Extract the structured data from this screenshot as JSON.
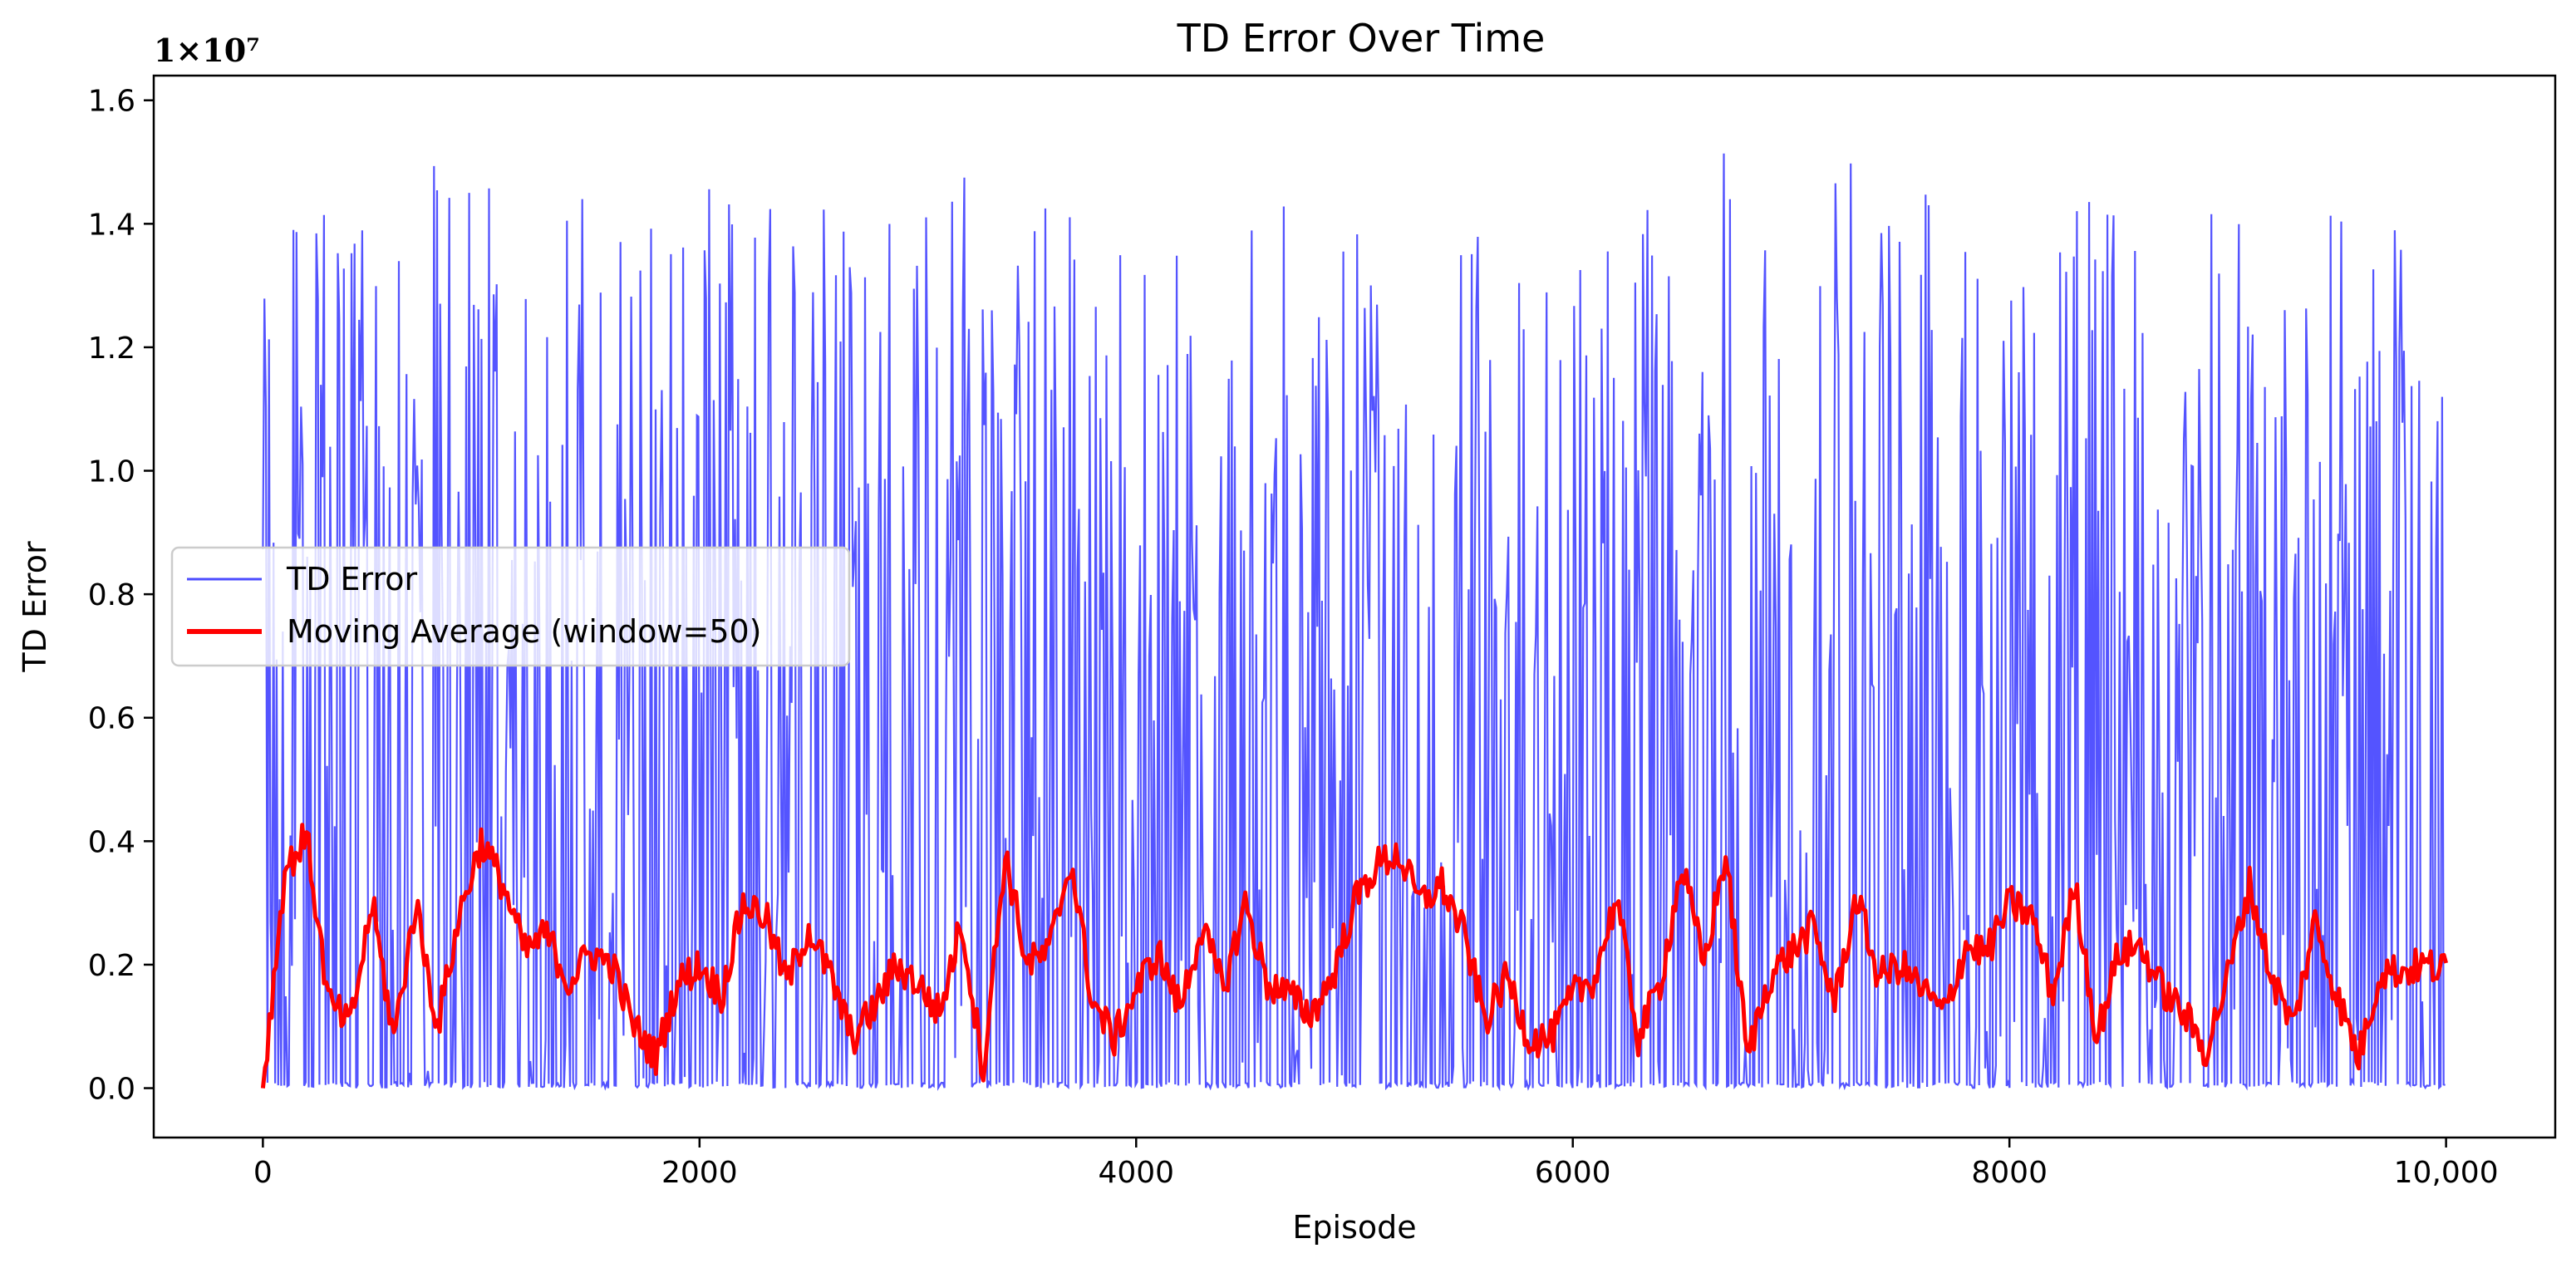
{
  "chart_data": {
    "type": "line",
    "title": "TD Error Over Time",
    "xlabel": "Episode",
    "ylabel": "TD Error",
    "y_offset_label": "1×10⁷",
    "y_scale_factor": 10000000,
    "xlim": [
      -500,
      10500
    ],
    "ylim": [
      -0.08,
      1.64
    ],
    "x_ticks": [
      0,
      2000,
      4000,
      6000,
      8000,
      10000
    ],
    "x_tick_labels": [
      "0",
      "2000",
      "4000",
      "6000",
      "8000",
      "10,000"
    ],
    "y_ticks": [
      0.0,
      0.2,
      0.4,
      0.6,
      0.8,
      1.0,
      1.2,
      1.4,
      1.6
    ],
    "y_tick_labels": [
      "0.0",
      "0.2",
      "0.4",
      "0.6",
      "0.8",
      "1.0",
      "1.2",
      "1.4",
      "1.6"
    ],
    "grid": false,
    "legend_position": "center-left",
    "series": [
      {
        "name": "TD Error",
        "color": "#4b4bff",
        "x": [
          0,
          100,
          200,
          300,
          400,
          500,
          600,
          700,
          800,
          900,
          1000,
          1100,
          1200,
          1300,
          1400,
          1500,
          1600,
          1700,
          1800,
          1900,
          2000,
          2100,
          2200,
          2300,
          2400,
          2500,
          2600,
          2700,
          2800,
          2900,
          3000,
          3100,
          3200,
          3300,
          3400,
          3500,
          3600,
          3700,
          3800,
          3900,
          4000,
          4100,
          4200,
          4300,
          4400,
          4500,
          4600,
          4700,
          4800,
          4900,
          5000,
          5100,
          5200,
          5300,
          5400,
          5500,
          5600,
          5700,
          5800,
          5900,
          6000,
          6100,
          6200,
          6300,
          6400,
          6500,
          6600,
          6700,
          6800,
          6900,
          7000,
          7100,
          7200,
          7300,
          7400,
          7500,
          7600,
          7700,
          7800,
          7900,
          8000,
          8100,
          8200,
          8300,
          8400,
          8500,
          8600,
          8700,
          8800,
          8900,
          9000,
          9100,
          9200,
          9300,
          9400,
          9500,
          9600,
          9700,
          9800,
          9900,
          10000
        ],
        "upper_envelope": [
          1.27,
          1.43,
          1.54,
          1.42,
          1.47,
          1.42,
          1.36,
          1.34,
          1.53,
          1.51,
          1.52,
          1.48,
          1.29,
          1.26,
          1.46,
          1.56,
          1.39,
          1.46,
          1.47,
          1.45,
          1.48,
          1.44,
          1.5,
          1.46,
          1.4,
          1.52,
          1.44,
          1.53,
          1.46,
          1.47,
          1.46,
          1.47,
          1.52,
          1.5,
          1.44,
          1.54,
          1.55,
          1.43,
          1.46,
          1.38,
          1.51,
          1.41,
          1.36,
          1.38,
          1.45,
          1.48,
          1.4,
          1.47,
          1.39,
          1.44,
          1.51,
          1.49,
          1.53,
          1.52,
          1.45,
          1.43,
          1.4,
          1.32,
          1.33,
          1.33,
          1.4,
          1.39,
          1.45,
          1.5,
          1.41,
          1.48,
          1.47,
          1.52,
          1.31,
          1.46,
          1.35,
          1.38,
          1.47,
          1.51,
          1.42,
          1.4,
          1.43,
          1.54,
          1.43,
          1.41,
          1.46,
          1.34,
          1.41,
          1.49,
          1.41,
          1.46,
          1.42,
          1.37,
          1.41,
          1.4,
          1.52,
          1.43,
          1.46,
          1.38,
          1.51,
          1.49,
          1.2,
          1.42,
          1.4,
          1.36,
          1.27
        ],
        "lower_envelope_value": 0.0
      },
      {
        "name": "Moving Average (window=50)",
        "color": "#ff0000",
        "x": [
          0,
          100,
          200,
          300,
          400,
          500,
          600,
          700,
          800,
          900,
          1000,
          1100,
          1200,
          1300,
          1400,
          1500,
          1600,
          1700,
          1800,
          1900,
          2000,
          2100,
          2200,
          2300,
          2400,
          2500,
          2600,
          2700,
          2800,
          2900,
          3000,
          3100,
          3200,
          3300,
          3400,
          3500,
          3600,
          3700,
          3800,
          3900,
          4000,
          4100,
          4200,
          4300,
          4400,
          4500,
          4600,
          4700,
          4800,
          4900,
          5000,
          5100,
          5200,
          5300,
          5400,
          5500,
          5600,
          5700,
          5800,
          5900,
          6000,
          6100,
          6200,
          6300,
          6400,
          6500,
          6600,
          6700,
          6800,
          6900,
          7000,
          7100,
          7200,
          7300,
          7400,
          7500,
          7600,
          7700,
          7800,
          7900,
          8000,
          8100,
          8200,
          8300,
          8400,
          8500,
          8600,
          8700,
          8800,
          8900,
          9000,
          9100,
          9200,
          9300,
          9400,
          9500,
          9600,
          9700,
          9800,
          9900,
          10000
        ],
        "y": [
          0.0,
          0.35,
          0.41,
          0.14,
          0.1,
          0.3,
          0.08,
          0.3,
          0.1,
          0.28,
          0.4,
          0.33,
          0.22,
          0.25,
          0.17,
          0.22,
          0.2,
          0.1,
          0.05,
          0.17,
          0.2,
          0.15,
          0.3,
          0.28,
          0.17,
          0.26,
          0.18,
          0.08,
          0.13,
          0.2,
          0.17,
          0.12,
          0.27,
          0.03,
          0.38,
          0.2,
          0.22,
          0.37,
          0.14,
          0.08,
          0.16,
          0.22,
          0.13,
          0.26,
          0.16,
          0.3,
          0.17,
          0.15,
          0.12,
          0.18,
          0.3,
          0.36,
          0.38,
          0.3,
          0.33,
          0.25,
          0.11,
          0.18,
          0.08,
          0.08,
          0.15,
          0.18,
          0.31,
          0.08,
          0.17,
          0.36,
          0.2,
          0.38,
          0.05,
          0.18,
          0.22,
          0.26,
          0.14,
          0.31,
          0.18,
          0.2,
          0.16,
          0.12,
          0.23,
          0.22,
          0.3,
          0.28,
          0.15,
          0.33,
          0.08,
          0.22,
          0.23,
          0.16,
          0.12,
          0.06,
          0.18,
          0.33,
          0.18,
          0.1,
          0.27,
          0.15,
          0.05,
          0.19,
          0.19,
          0.2,
          0.19
        ]
      }
    ]
  }
}
